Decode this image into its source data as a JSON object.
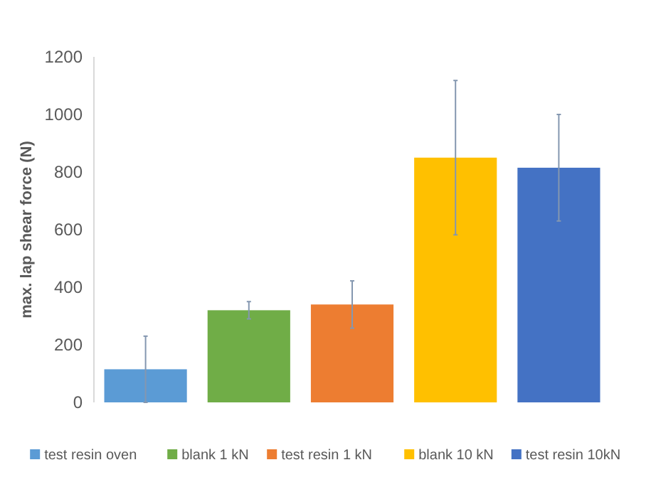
{
  "chart_data": {
    "type": "bar",
    "ylabel": "max. lap shear force (N)",
    "categories": [
      null,
      null,
      null,
      null,
      null
    ],
    "stacked": true,
    "series": [
      {
        "name": "test resin oven",
        "color": "#5b9bd5",
        "values": [
          115,
          null,
          null,
          null,
          null
        ],
        "errors": [
          115,
          null,
          null,
          null,
          null
        ]
      },
      {
        "name": "blank 1 kN",
        "color": "#70ad47",
        "values": [
          null,
          320,
          null,
          null,
          null
        ],
        "errors": [
          null,
          30,
          null,
          null,
          null
        ]
      },
      {
        "name": "test resin 1 kN",
        "color": "#ed7d31",
        "values": [
          null,
          null,
          340,
          null,
          null
        ],
        "errors": [
          null,
          null,
          82,
          null,
          null
        ]
      },
      {
        "name": "blank 10 kN",
        "color": "#ffc000",
        "values": [
          null,
          null,
          null,
          850,
          null
        ],
        "errors": [
          null,
          null,
          null,
          268,
          null
        ]
      },
      {
        "name": "test resin 10kN",
        "color": "#4472c4",
        "values": [
          null,
          null,
          null,
          null,
          815
        ],
        "errors": [
          null,
          null,
          null,
          null,
          185
        ]
      }
    ],
    "ylim": [
      0,
      1200
    ],
    "yticks": [
      0,
      200,
      400,
      600,
      800,
      1000,
      1200
    ],
    "tick_labels": "y",
    "legend": "bottom",
    "grid": false
  }
}
